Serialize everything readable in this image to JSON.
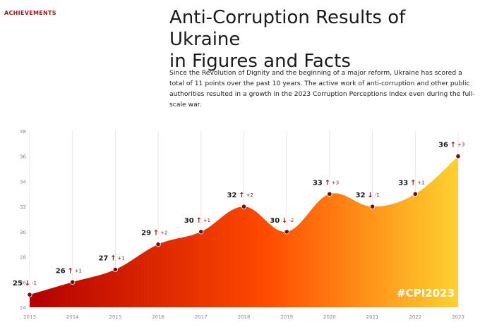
{
  "section_label": "ACHIEVEMENTS",
  "title_line1": "Anti-Corruption Results of Ukraine",
  "title_line2": "in Figures and Facts",
  "description": "Since the Revolution of Dignity and the beginning of a major reform, Ukraine has scored a total of 11 points over the past 10 years. The active work of anti-corruption and other public authorities resulted in a growth in the 2023 Corruption Perceptions Index even during the full-scale war.",
  "hashtag": "#CPI2023",
  "colors": {
    "fill_left": "#b30000",
    "fill_mid": "#ff4a00",
    "fill_right": "#ffd230",
    "point": "#6b0f0f",
    "delta": "#8b1a1a"
  },
  "chart_data": {
    "type": "area",
    "title": "",
    "xlabel": "",
    "ylabel": "",
    "x": [
      "2013",
      "2014",
      "2015",
      "2016",
      "2017",
      "2018",
      "2019",
      "2020",
      "2021",
      "2022",
      "2023"
    ],
    "values": [
      25,
      26,
      27,
      29,
      30,
      32,
      30,
      33,
      32,
      33,
      36
    ],
    "deltas": [
      "-1",
      "+1",
      "+1",
      "+2",
      "+1",
      "+2",
      "-2",
      "+3",
      "-1",
      "+1",
      "+3"
    ],
    "directions": [
      "down",
      "up",
      "up",
      "up",
      "up",
      "up",
      "down",
      "up",
      "down",
      "up",
      "up"
    ],
    "ylim": [
      24,
      38
    ],
    "yticks": [
      24,
      26,
      28,
      30,
      32,
      34,
      36,
      38
    ],
    "grid": "vertical"
  }
}
